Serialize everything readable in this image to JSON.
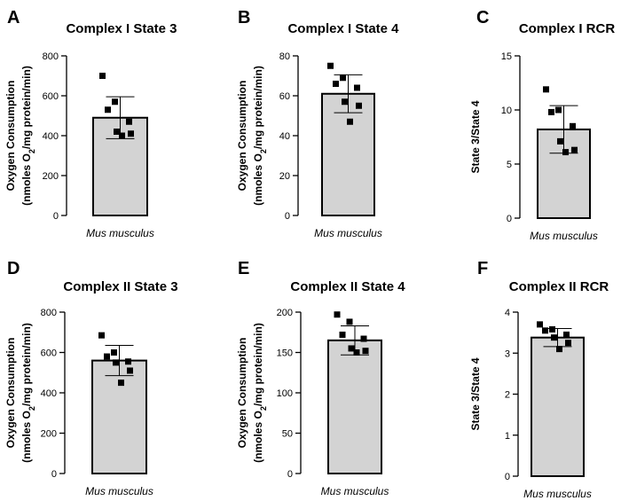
{
  "chart_data": [
    {
      "letter": "A",
      "type": "bar",
      "title": "Complex I State 3",
      "ylabel": [
        "Oxygen Consumption",
        "(nmoles O",
        "2",
        "/mg protein/min)"
      ],
      "categories": [
        "Mus musculus"
      ],
      "values": [
        490
      ],
      "error": [
        105
      ],
      "points": [
        700,
        570,
        530,
        470,
        420,
        410,
        400
      ],
      "ylim": [
        0,
        800
      ],
      "yticks": [
        0,
        200,
        400,
        600,
        800
      ],
      "ytick_labels": [
        "0",
        "200",
        "400",
        "600",
        "800"
      ]
    },
    {
      "letter": "B",
      "type": "bar",
      "title": "Complex I State 4",
      "ylabel": [
        "Oxygen Consumption",
        "(nmoles O",
        "2",
        "/mg protein/min)"
      ],
      "categories": [
        "Mus musculus"
      ],
      "values": [
        61
      ],
      "error": [
        9.5
      ],
      "points": [
        75,
        69,
        66,
        64,
        57,
        55,
        47
      ],
      "ylim": [
        0,
        80
      ],
      "yticks": [
        0,
        20,
        40,
        60,
        80
      ],
      "ytick_labels": [
        "0",
        "20",
        "40",
        "60",
        "80"
      ]
    },
    {
      "letter": "C",
      "type": "bar",
      "title": "Complex I RCR",
      "ylabel": [
        "State 3/State 4"
      ],
      "categories": [
        "Mus musculus"
      ],
      "values": [
        8.2
      ],
      "error": [
        2.2
      ],
      "points": [
        11.9,
        10.0,
        9.8,
        8.5,
        7.1,
        6.3,
        6.1
      ],
      "ylim": [
        0,
        15
      ],
      "yticks": [
        0,
        5,
        10,
        15
      ],
      "ytick_labels": [
        "0",
        "5",
        "10",
        "15"
      ]
    },
    {
      "letter": "D",
      "type": "bar",
      "title": "Complex II State 3",
      "ylabel": [
        "Oxygen Consumption",
        "(nmoles O",
        "2",
        "/mg protein/min)"
      ],
      "categories": [
        "Mus musculus"
      ],
      "values": [
        560
      ],
      "error": [
        75
      ],
      "points": [
        685,
        600,
        580,
        555,
        550,
        510,
        450
      ],
      "ylim": [
        0,
        800
      ],
      "yticks": [
        0,
        200,
        400,
        600,
        800
      ],
      "ytick_labels": [
        "0",
        "200",
        "400",
        "600",
        "800"
      ]
    },
    {
      "letter": "E",
      "type": "bar",
      "title": "Complex II State 4",
      "ylabel": [
        "Oxygen Consumption",
        "(nmoles O",
        "2",
        "/mg protein/min)"
      ],
      "categories": [
        "Mus musculus"
      ],
      "values": [
        165
      ],
      "error": [
        18
      ],
      "points": [
        197,
        188,
        172,
        167,
        155,
        152,
        150
      ],
      "ylim": [
        0,
        200
      ],
      "yticks": [
        0,
        50,
        100,
        150,
        200
      ],
      "ytick_labels": [
        "0",
        "50",
        "100",
        "150",
        "200"
      ]
    },
    {
      "letter": "F",
      "type": "bar",
      "title": "Complex II RCR",
      "ylabel": [
        "State 3/State 4"
      ],
      "categories": [
        "Mus musculus"
      ],
      "values": [
        3.38
      ],
      "error": [
        0.22
      ],
      "points": [
        3.7,
        3.58,
        3.55,
        3.45,
        3.38,
        3.25,
        3.1
      ],
      "ylim": [
        0,
        4
      ],
      "yticks": [
        0,
        1,
        2,
        3,
        4
      ],
      "ytick_labels": [
        "0",
        "1",
        "2",
        "3",
        "4"
      ]
    }
  ]
}
